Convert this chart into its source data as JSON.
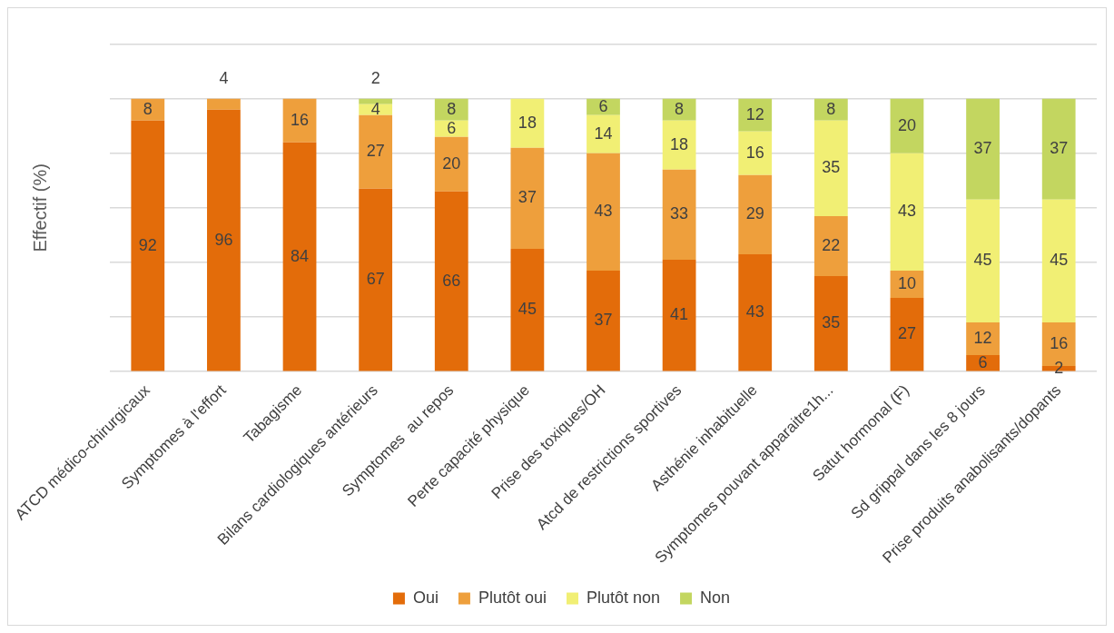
{
  "chart_data": {
    "type": "bar",
    "stacked": true,
    "ylabel": "Effectif (%)",
    "categories": [
      "ATCD médico-chirurgicaux",
      "Symptomes à l'effort",
      "Tabagisme",
      "Bilans cardiologiques antérieurs",
      "Symptomes  au repos",
      "Perte capacité physique",
      "Prise des toxiques/OH",
      "Atcd de restrictions sportives",
      "Asthénie inhabituelle",
      "Symptomes pouvant apparaitre1h...",
      "Satut hormonal (F)",
      "Sd grippal dans les 8 jours",
      "Prise produits anabolisants/dopants"
    ],
    "series": [
      {
        "name": "Oui",
        "color": "#e36c0a",
        "values": [
          92,
          96,
          84,
          67,
          66,
          45,
          37,
          41,
          43,
          35,
          27,
          6,
          2
        ]
      },
      {
        "name": "Plutôt oui",
        "color": "#ee9f3c",
        "values": [
          8,
          4,
          16,
          27,
          20,
          37,
          43,
          33,
          29,
          22,
          10,
          12,
          16
        ]
      },
      {
        "name": "Plutôt non",
        "color": "#f1ef74",
        "values": [
          null,
          null,
          null,
          4,
          6,
          18,
          14,
          18,
          16,
          35,
          43,
          45,
          45
        ]
      },
      {
        "name": "Non",
        "color": "#c3d660",
        "values": [
          null,
          null,
          null,
          2,
          8,
          null,
          6,
          8,
          12,
          8,
          20,
          37,
          37
        ]
      }
    ],
    "ylim": [
      0,
      120
    ],
    "yticks": [
      {
        "value": 0,
        "label": null
      },
      {
        "value": 20,
        "label": null
      },
      {
        "value": 40,
        "label": null
      },
      {
        "value": 60,
        "label": null
      },
      {
        "value": 80,
        "label": null
      },
      {
        "value": 100,
        "label": null
      },
      {
        "value": 120,
        "label": null
      }
    ],
    "tick_labels": "x",
    "grid": "y",
    "legend": "bottom",
    "data_labels": true
  }
}
